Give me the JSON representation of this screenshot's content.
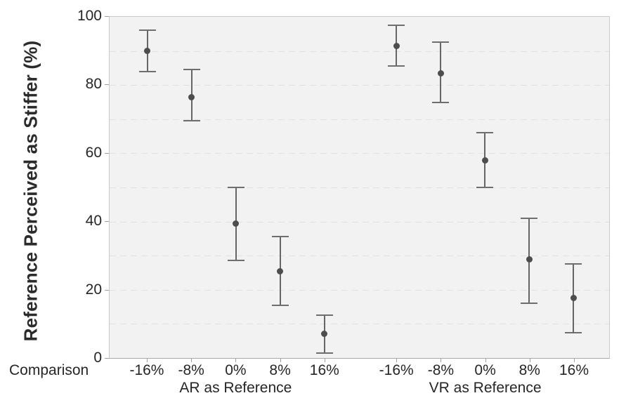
{
  "chart_data": {
    "type": "scatter",
    "subtype": "point-estimates-with-error-bars",
    "title": "",
    "ylabel": "Reference Perceived as Stiffer (%)",
    "xlabel": "Comparison",
    "ylim": [
      0,
      100
    ],
    "y_ticks": [
      100,
      80,
      60,
      40,
      20,
      0
    ],
    "grid": true,
    "grid_step": 10,
    "legend": "none",
    "categories": [
      "-16%",
      "-8%",
      "0%",
      "8%",
      "16%"
    ],
    "groups": [
      {
        "label": "AR as Reference",
        "points": [
          {
            "category": "-16%",
            "mean": 90,
            "ci_low": 84,
            "ci_high": 96
          },
          {
            "category": "-8%",
            "mean": 76.5,
            "ci_low": 69.5,
            "ci_high": 84.5
          },
          {
            "category": "0%",
            "mean": 39.5,
            "ci_low": 28.5,
            "ci_high": 50
          },
          {
            "category": "8%",
            "mean": 25.5,
            "ci_low": 15.5,
            "ci_high": 35.5
          },
          {
            "category": "16%",
            "mean": 7,
            "ci_low": 1.5,
            "ci_high": 12.5
          }
        ]
      },
      {
        "label": "VR as Reference",
        "points": [
          {
            "category": "-16%",
            "mean": 91.5,
            "ci_low": 85.5,
            "ci_high": 97.5
          },
          {
            "category": "-8%",
            "mean": 83.5,
            "ci_low": 75,
            "ci_high": 92.5
          },
          {
            "category": "0%",
            "mean": 58,
            "ci_low": 50,
            "ci_high": 66
          },
          {
            "category": "8%",
            "mean": 29,
            "ci_low": 16,
            "ci_high": 41
          },
          {
            "category": "16%",
            "mean": 17.5,
            "ci_low": 7.5,
            "ci_high": 27.5
          }
        ]
      }
    ],
    "colors": {
      "marker": "#4d4d4d",
      "error_bar": "#666666",
      "plot_background": "#f2f2f3",
      "gridline": "#e1e1e4",
      "axis_border": "#c9c9cd",
      "text": "#262626"
    }
  }
}
